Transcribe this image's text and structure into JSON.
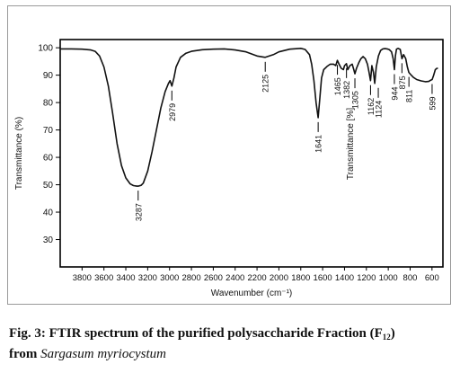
{
  "chart_data": {
    "type": "line",
    "title": "",
    "xlabel": "Wavenumber (cm⁻¹)",
    "ylabel": "Transmittance (%)",
    "inner_ylabel": "Transmittance [%]",
    "xlim": [
      4000,
      500
    ],
    "ylim": [
      20,
      103
    ],
    "x_reversed": true,
    "grid": false,
    "xticks": [
      3800,
      3600,
      3400,
      3200,
      3000,
      2800,
      2600,
      2400,
      2200,
      2000,
      1800,
      1600,
      1400,
      1200,
      1000,
      800,
      600
    ],
    "yticks": [
      30,
      40,
      50,
      60,
      70,
      80,
      90,
      100
    ],
    "series": [
      {
        "x": [
          4000,
          3900,
          3800,
          3720,
          3680,
          3640,
          3600,
          3560,
          3520,
          3480,
          3440,
          3400,
          3360,
          3330,
          3300,
          3287,
          3260,
          3240,
          3200,
          3160,
          3120,
          3080,
          3040,
          3010,
          2995,
          2979,
          2960,
          2940,
          2900,
          2850,
          2800,
          2700,
          2600,
          2500,
          2400,
          2300,
          2200,
          2125,
          2050,
          2000,
          1900,
          1800,
          1760,
          1720,
          1700,
          1680,
          1660,
          1641,
          1625,
          1610,
          1590,
          1560,
          1530,
          1500,
          1480,
          1465,
          1450,
          1430,
          1410,
          1400,
          1382,
          1370,
          1350,
          1330,
          1315,
          1305,
          1290,
          1270,
          1250,
          1230,
          1210,
          1190,
          1175,
          1162,
          1150,
          1135,
          1124,
          1110,
          1090,
          1070,
          1050,
          1030,
          1010,
          990,
          970,
          955,
          944,
          935,
          925,
          910,
          890,
          875,
          860,
          840,
          825,
          811,
          790,
          770,
          740,
          700,
          660,
          630,
          610,
          599,
          585,
          570,
          555,
          545
        ],
        "y": [
          99.6,
          99.6,
          99.5,
          99.2,
          98.7,
          97,
          93,
          86,
          76,
          65,
          57,
          52.5,
          50.3,
          49.7,
          49.5,
          49.5,
          49.8,
          50.6,
          55,
          62,
          70,
          78,
          84,
          87,
          88,
          86,
          89,
          93,
          96.5,
          98,
          98.7,
          99.3,
          99.5,
          99.6,
          99.2,
          98.5,
          97,
          96.5,
          97.5,
          98.5,
          99.5,
          99.8,
          99.4,
          97.5,
          94,
          88,
          80,
          74.5,
          82,
          89,
          92,
          93.2,
          94,
          94,
          93.5,
          95.4,
          94,
          92.5,
          92,
          93.5,
          94.2,
          92,
          93.5,
          94,
          92,
          90.5,
          92.5,
          94.5,
          96,
          96.8,
          96,
          94,
          91,
          88,
          93.5,
          91,
          87,
          93,
          97,
          99,
          99.6,
          99.7,
          99.6,
          99.3,
          98.5,
          96,
          92,
          97,
          99.5,
          99.8,
          99.4,
          96,
          97.5,
          96,
          93,
          91,
          90,
          89.2,
          88.4,
          87.9,
          87.6,
          87.7,
          88.2,
          88.4,
          90,
          92,
          92.5,
          92.5
        ]
      }
    ],
    "peak_labels": [
      {
        "x": 3287,
        "label": "3287"
      },
      {
        "x": 2979,
        "label": "2979"
      },
      {
        "x": 2125,
        "label": "2125"
      },
      {
        "x": 1641,
        "label": "1641"
      },
      {
        "x": 1465,
        "label": "1465"
      },
      {
        "x": 1382,
        "label": "1382"
      },
      {
        "x": 1305,
        "label": "1305"
      },
      {
        "x": 1162,
        "label": "1162"
      },
      {
        "x": 1124,
        "label": "1124"
      },
      {
        "x": 944,
        "label": "944"
      },
      {
        "x": 875,
        "label": "875"
      },
      {
        "x": 811,
        "label": "811"
      },
      {
        "x": 599,
        "label": "599"
      }
    ]
  },
  "caption": {
    "prefix": "Fig. 3: FTIR spectrum of the purified polysaccharide Fraction (F",
    "subscript": "12",
    "suffix": ")",
    "line2_prefix": "from ",
    "species": "Sargasum myriocystum"
  }
}
